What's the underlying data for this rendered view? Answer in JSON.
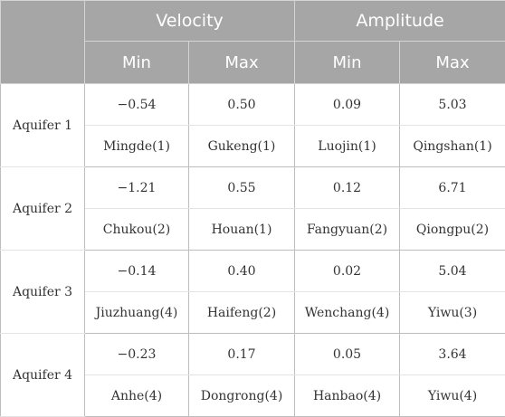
{
  "header": {
    "groups": [
      "Velocity",
      "Amplitude"
    ],
    "subheaders": [
      "Min",
      "Max",
      "Min",
      "Max"
    ]
  },
  "rows": [
    {
      "label": "Aquifer 1",
      "values": [
        "−0.54",
        "0.50",
        "0.09",
        "5.03"
      ],
      "names": [
        "Mingde(1)",
        "Gukeng(1)",
        "Luojin(1)",
        "Qingshan(1)"
      ]
    },
    {
      "label": "Aquifer 2",
      "values": [
        "−1.21",
        "0.55",
        "0.12",
        "6.71"
      ],
      "names": [
        "Chukou(2)",
        "Houan(1)",
        "Fangyuan(2)",
        "Qiongpu(2)"
      ]
    },
    {
      "label": "Aquifer 3",
      "values": [
        "−0.14",
        "0.40",
        "0.02",
        "5.04"
      ],
      "names": [
        "Jiuzhuang(4)",
        "Haifeng(2)",
        "Wenchang(4)",
        "Yiwu(3)"
      ]
    },
    {
      "label": "Aquifer 4",
      "values": [
        "−0.23",
        "0.17",
        "0.05",
        "3.64"
      ],
      "names": [
        "Anhe(4)",
        "Dongrong(4)",
        "Hanbao(4)",
        "Yiwu(4)"
      ]
    }
  ]
}
